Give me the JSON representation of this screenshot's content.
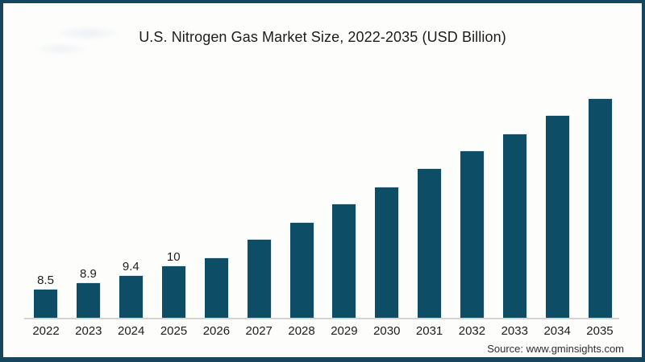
{
  "title": "U.S. Nitrogen Gas Market Size, 2022-2035 (USD Billion)",
  "source": "Source: www.gminsights.com",
  "colors": {
    "bar": "#0d4d66",
    "frame_border": "#15465e",
    "axis_line": "#d3d3d3",
    "text": "#1d1d1d"
  },
  "chart_data": {
    "type": "bar",
    "title": "U.S. Nitrogen Gas Market Size, 2022-2035 (USD Billion)",
    "unit": "USD Billion",
    "categories": [
      "2022",
      "2023",
      "2024",
      "2025",
      "2026",
      "2027",
      "2028",
      "2029",
      "2030",
      "2031",
      "2032",
      "2033",
      "2034",
      "2035"
    ],
    "values": [
      8.5,
      8.9,
      9.4,
      10,
      10.5,
      11.7,
      12.8,
      14.0,
      15.1,
      16.3,
      17.4,
      18.5,
      19.7,
      20.8
    ],
    "data_labels": [
      "8.5",
      "8.9",
      "9.4",
      "10",
      "",
      "",
      "",
      "",
      "",
      "",
      "",
      "",
      "",
      ""
    ],
    "xlabel": "",
    "ylabel": "",
    "ylim": [
      6.64,
      21.3
    ],
    "grid": false,
    "legend": false,
    "bar_color": "#0d4d66",
    "axis_line_color": "#d3d3d3",
    "notes": "Only the first four bars carry data labels; baseline is not zero-based."
  }
}
